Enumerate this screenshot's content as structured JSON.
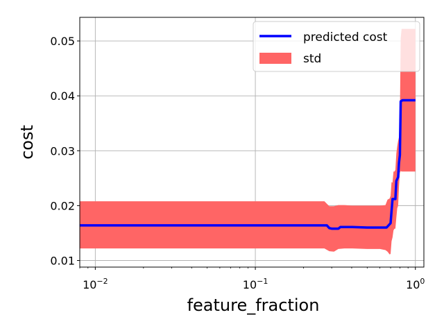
{
  "chart_data": {
    "type": "line",
    "xscale": "log",
    "xlim": [
      0.008,
      1.13
    ],
    "ylim": [
      0.0088,
      0.0543
    ],
    "grid": true,
    "xlabel": "feature_fraction",
    "ylabel": "cost",
    "x_ticks": [
      {
        "value": 0.01,
        "base": "10",
        "exp": "−2"
      },
      {
        "value": 0.1,
        "base": "10",
        "exp": "−1"
      },
      {
        "value": 1,
        "base": "10",
        "exp": "0"
      }
    ],
    "y_ticks": [
      {
        "value": 0.01,
        "label": "0.01"
      },
      {
        "value": 0.02,
        "label": "0.02"
      },
      {
        "value": 0.03,
        "label": "0.03"
      },
      {
        "value": 0.04,
        "label": "0.04"
      },
      {
        "value": 0.05,
        "label": "0.05"
      }
    ],
    "legend_position": "top-right",
    "series": [
      {
        "name": "predicted cost",
        "kind": "line",
        "color": "#0000ff",
        "x": [
          0.008,
          0.1,
          0.28,
          0.29,
          0.3,
          0.33,
          0.34,
          0.4,
          0.5,
          0.6,
          0.66,
          0.67,
          0.7,
          0.72,
          0.75,
          0.76,
          0.78,
          0.79,
          0.8,
          0.81,
          0.83,
          0.84,
          1.0
        ],
        "y": [
          0.0164,
          0.0164,
          0.0164,
          0.0159,
          0.0158,
          0.0158,
          0.0161,
          0.0161,
          0.016,
          0.016,
          0.016,
          0.0162,
          0.0168,
          0.0212,
          0.0212,
          0.0245,
          0.0252,
          0.0278,
          0.0292,
          0.039,
          0.0392,
          0.0392,
          0.0392
        ]
      },
      {
        "name": "std",
        "kind": "band",
        "color": "#ff6565",
        "x": [
          0.008,
          0.1,
          0.27,
          0.29,
          0.31,
          0.33,
          0.36,
          0.4,
          0.5,
          0.6,
          0.65,
          0.67,
          0.69,
          0.7,
          0.71,
          0.72,
          0.73,
          0.74,
          0.75,
          0.76,
          0.77,
          0.78,
          0.79,
          0.8,
          0.81,
          0.82,
          0.83,
          1.0
        ],
        "lower": [
          0.0122,
          0.0122,
          0.0122,
          0.0117,
          0.0116,
          0.0121,
          0.0122,
          0.0122,
          0.0121,
          0.0121,
          0.0119,
          0.0116,
          0.0111,
          0.0112,
          0.0135,
          0.0142,
          0.0155,
          0.0158,
          0.0158,
          0.0178,
          0.0195,
          0.02,
          0.0235,
          0.026,
          0.0263,
          0.0262,
          0.0262,
          0.0262
        ],
        "upper": [
          0.0208,
          0.0208,
          0.0208,
          0.0199,
          0.0199,
          0.0201,
          0.0201,
          0.02,
          0.02,
          0.02,
          0.0201,
          0.0211,
          0.0213,
          0.0218,
          0.0243,
          0.0242,
          0.0262,
          0.0262,
          0.0265,
          0.0295,
          0.0308,
          0.0318,
          0.0325,
          0.0362,
          0.0505,
          0.0522,
          0.0522,
          0.0522
        ]
      }
    ]
  }
}
